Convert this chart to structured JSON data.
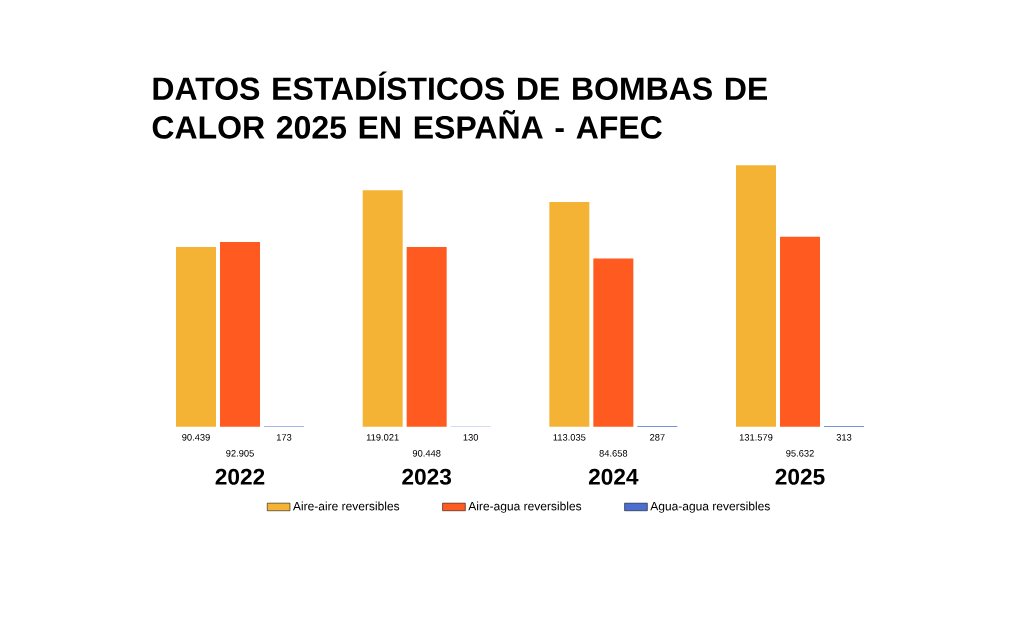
{
  "chart_data": {
    "type": "bar",
    "title": "DATOS ESTADÍSTICOS DE BOMBAS DE CALOR 2025 EN ESPAÑA - AFEC",
    "categories": [
      "2022",
      "2023",
      "2024",
      "2025"
    ],
    "series": [
      {
        "name": "Aire-aire reversibles",
        "color": "#f5b335",
        "values": [
          90439,
          119021,
          113035,
          131579
        ],
        "value_labels": [
          "90.439",
          "119.021",
          "113.035",
          "131.579"
        ]
      },
      {
        "name": "Aire-agua reversibles",
        "color": "#ff5a1f",
        "values": [
          92905,
          90448,
          84658,
          95632
        ],
        "value_labels": [
          "92.905",
          "90.448",
          "84.658",
          "95.632"
        ]
      },
      {
        "name": "Agua-agua reversibles",
        "color": "#4a6fd0",
        "values": [
          173,
          130,
          287,
          313
        ],
        "value_labels": [
          "173",
          "130",
          "287",
          "313"
        ]
      }
    ],
    "legend": "bottom"
  }
}
